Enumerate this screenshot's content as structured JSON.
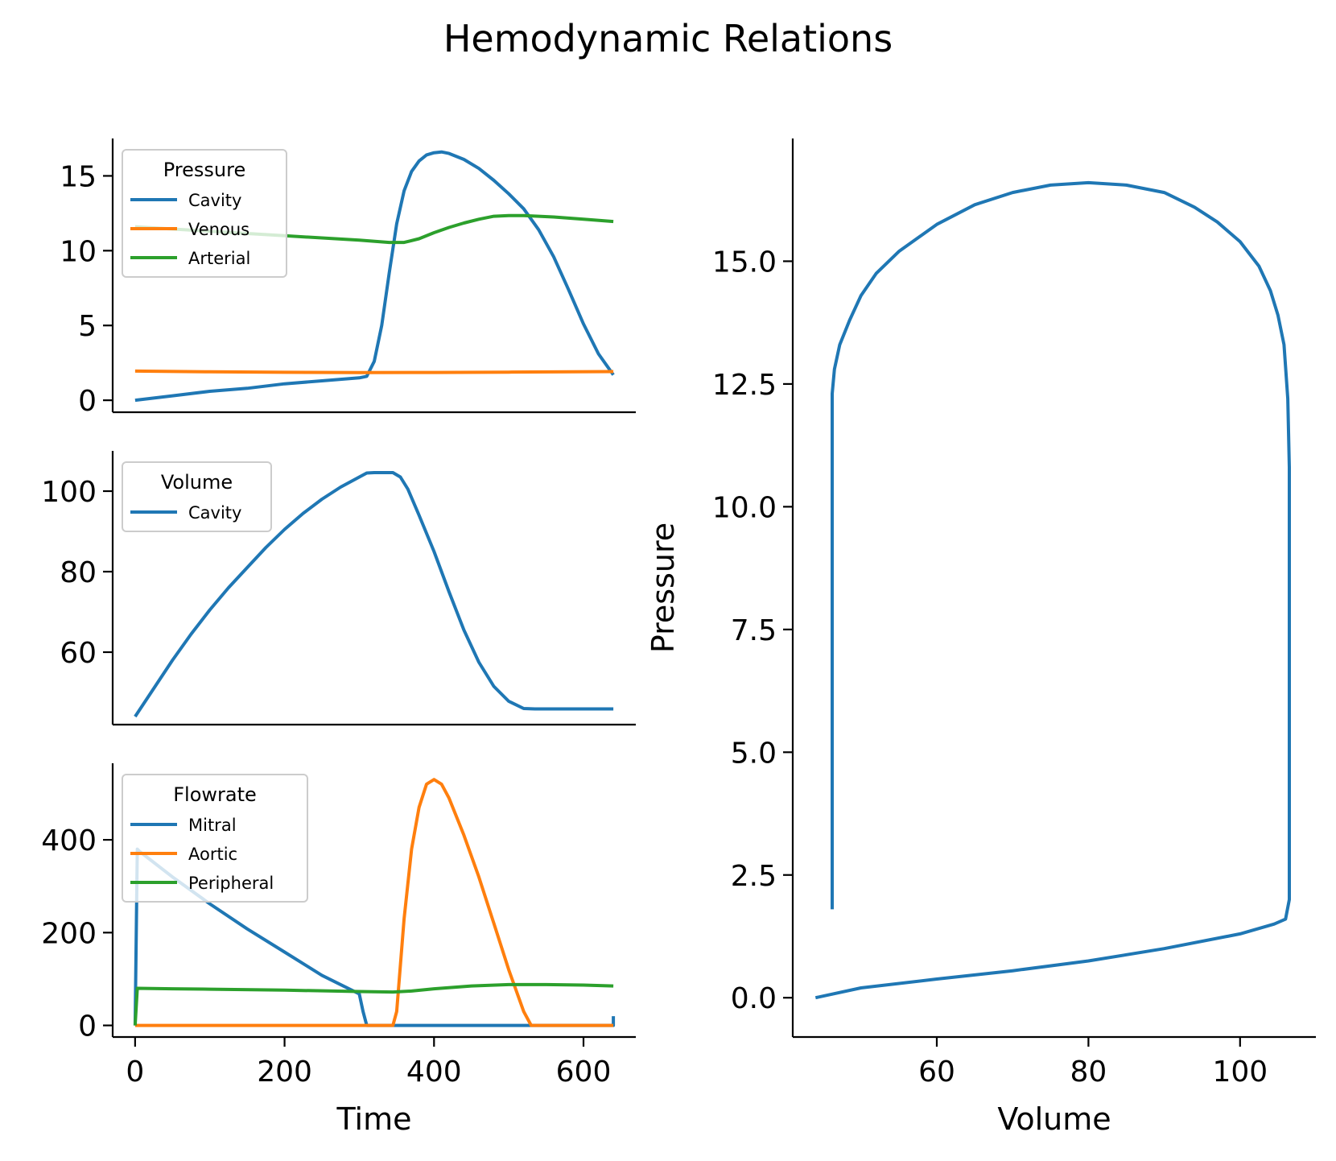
{
  "title": "Hemodynamic Relations",
  "colors": {
    "blue": "#1f77b4",
    "orange": "#ff7f0e",
    "green": "#2ca02c"
  },
  "chart_data": [
    {
      "type": "line",
      "id": "pressure",
      "legend_title": "Pressure",
      "legend_placement": "top-left",
      "xlim": [
        -30,
        670
      ],
      "ylim": [
        -0.8,
        17.5
      ],
      "yticks": [
        0,
        5,
        10,
        15
      ],
      "ytick_labels": [
        "0",
        "5",
        "10",
        "15"
      ],
      "series": [
        {
          "name": "Cavity",
          "color": "#1f77b4",
          "x": [
            0,
            50,
            100,
            150,
            200,
            250,
            300,
            310,
            320,
            330,
            340,
            350,
            360,
            370,
            380,
            390,
            400,
            410,
            420,
            440,
            460,
            480,
            500,
            520,
            540,
            560,
            580,
            600,
            620,
            640
          ],
          "y": [
            0,
            0.3,
            0.6,
            0.8,
            1.1,
            1.3,
            1.5,
            1.6,
            2.6,
            5.0,
            8.5,
            11.8,
            14.0,
            15.3,
            16.0,
            16.4,
            16.55,
            16.6,
            16.5,
            16.1,
            15.5,
            14.7,
            13.8,
            12.8,
            11.4,
            9.6,
            7.4,
            5.1,
            3.1,
            1.7
          ]
        },
        {
          "name": "Venous",
          "color": "#ff7f0e",
          "x": [
            0,
            100,
            200,
            300,
            400,
            500,
            640
          ],
          "y": [
            1.95,
            1.9,
            1.87,
            1.85,
            1.86,
            1.88,
            1.92
          ]
        },
        {
          "name": "Arterial",
          "color": "#2ca02c",
          "x": [
            0,
            100,
            200,
            300,
            340,
            360,
            380,
            400,
            420,
            440,
            460,
            480,
            500,
            520,
            560,
            600,
            640
          ],
          "y": [
            11.6,
            11.3,
            11.0,
            10.7,
            10.55,
            10.55,
            10.8,
            11.2,
            11.55,
            11.85,
            12.1,
            12.3,
            12.35,
            12.35,
            12.25,
            12.1,
            11.95
          ]
        }
      ]
    },
    {
      "type": "line",
      "id": "volume",
      "legend_title": "Volume",
      "legend_placement": "top-left",
      "xlim": [
        -30,
        670
      ],
      "ylim": [
        42,
        110
      ],
      "yticks": [
        60,
        80,
        100
      ],
      "ytick_labels": [
        "60",
        "80",
        "100"
      ],
      "series": [
        {
          "name": "Cavity",
          "color": "#1f77b4",
          "x": [
            0,
            25,
            50,
            75,
            100,
            125,
            150,
            175,
            200,
            225,
            250,
            275,
            300,
            310,
            320,
            345,
            355,
            365,
            380,
            400,
            420,
            440,
            460,
            480,
            500,
            520,
            535,
            550,
            600,
            640
          ],
          "y": [
            44,
            51,
            58,
            64.5,
            70.5,
            76,
            81,
            86,
            90.5,
            94.5,
            98,
            101,
            103.5,
            104.5,
            104.6,
            104.6,
            103.5,
            100.5,
            94,
            85,
            75,
            65.5,
            57.5,
            51.5,
            47.8,
            46,
            45.9,
            45.9,
            45.9,
            45.9
          ]
        }
      ]
    },
    {
      "type": "line",
      "id": "flowrate",
      "legend_title": "Flowrate",
      "legend_placement": "top-left",
      "xlim": [
        -30,
        670
      ],
      "ylim": [
        -25,
        565
      ],
      "xticks": [
        0,
        200,
        400,
        600
      ],
      "xtick_labels": [
        "0",
        "200",
        "400",
        "600"
      ],
      "xlabel": "Time",
      "yticks": [
        0,
        200,
        400
      ],
      "ytick_labels": [
        "0",
        "200",
        "400"
      ],
      "series": [
        {
          "name": "Mitral",
          "color": "#1f77b4",
          "x": [
            0,
            3,
            6,
            50,
            100,
            150,
            200,
            250,
            300,
            305,
            310,
            345,
            400,
            500,
            635,
            640,
            640
          ],
          "y": [
            0,
            380,
            375,
            320,
            262,
            208,
            158,
            108,
            68,
            30,
            0,
            0,
            0,
            0,
            0,
            0,
            20
          ]
        },
        {
          "name": "Aortic",
          "color": "#ff7f0e",
          "x": [
            0,
            100,
            200,
            300,
            345,
            350,
            360,
            370,
            380,
            390,
            400,
            410,
            420,
            440,
            460,
            480,
            500,
            520,
            530,
            545,
            600,
            640
          ],
          "y": [
            0,
            0,
            0,
            0,
            0,
            30,
            230,
            380,
            470,
            520,
            530,
            520,
            490,
            410,
            320,
            220,
            120,
            30,
            0,
            0,
            0,
            0
          ]
        },
        {
          "name": "Peripheral",
          "color": "#2ca02c",
          "x": [
            0,
            3,
            50,
            100,
            200,
            300,
            345,
            370,
            400,
            450,
            500,
            550,
            600,
            640
          ],
          "y": [
            0,
            80,
            79,
            78,
            76,
            73,
            72,
            74,
            79,
            85,
            88,
            88,
            87,
            85
          ]
        }
      ]
    },
    {
      "type": "line",
      "id": "pv-loop",
      "xlim": [
        41,
        110
      ],
      "ylim": [
        -0.8,
        17.5
      ],
      "xticks": [
        60,
        80,
        100
      ],
      "xtick_labels": [
        "60",
        "80",
        "100"
      ],
      "xlabel": "Volume",
      "yticks": [
        0.0,
        2.5,
        5.0,
        7.5,
        10.0,
        12.5,
        15.0
      ],
      "ytick_labels": [
        "0.0",
        "2.5",
        "5.0",
        "7.5",
        "10.0",
        "12.5",
        "15.0"
      ],
      "ylabel": "Pressure",
      "series": [
        {
          "color": "#1f77b4",
          "x": [
            44,
            50,
            60,
            70,
            80,
            90,
            100,
            104.5,
            106,
            106.5,
            106.5,
            106.3,
            105.8,
            105,
            104,
            102.5,
            100,
            97,
            94,
            90,
            85,
            80,
            75,
            70,
            65,
            60,
            55,
            52,
            50,
            48.5,
            47.2,
            46.5,
            46.2,
            46.2,
            46.2
          ],
          "y": [
            0,
            0.2,
            0.38,
            0.55,
            0.75,
            1.0,
            1.3,
            1.5,
            1.6,
            2.0,
            10.8,
            12.2,
            13.3,
            13.9,
            14.4,
            14.9,
            15.4,
            15.8,
            16.1,
            16.4,
            16.55,
            16.6,
            16.55,
            16.4,
            16.15,
            15.75,
            15.2,
            14.75,
            14.3,
            13.8,
            13.3,
            12.8,
            12.3,
            7.0,
            1.8
          ]
        }
      ]
    }
  ]
}
